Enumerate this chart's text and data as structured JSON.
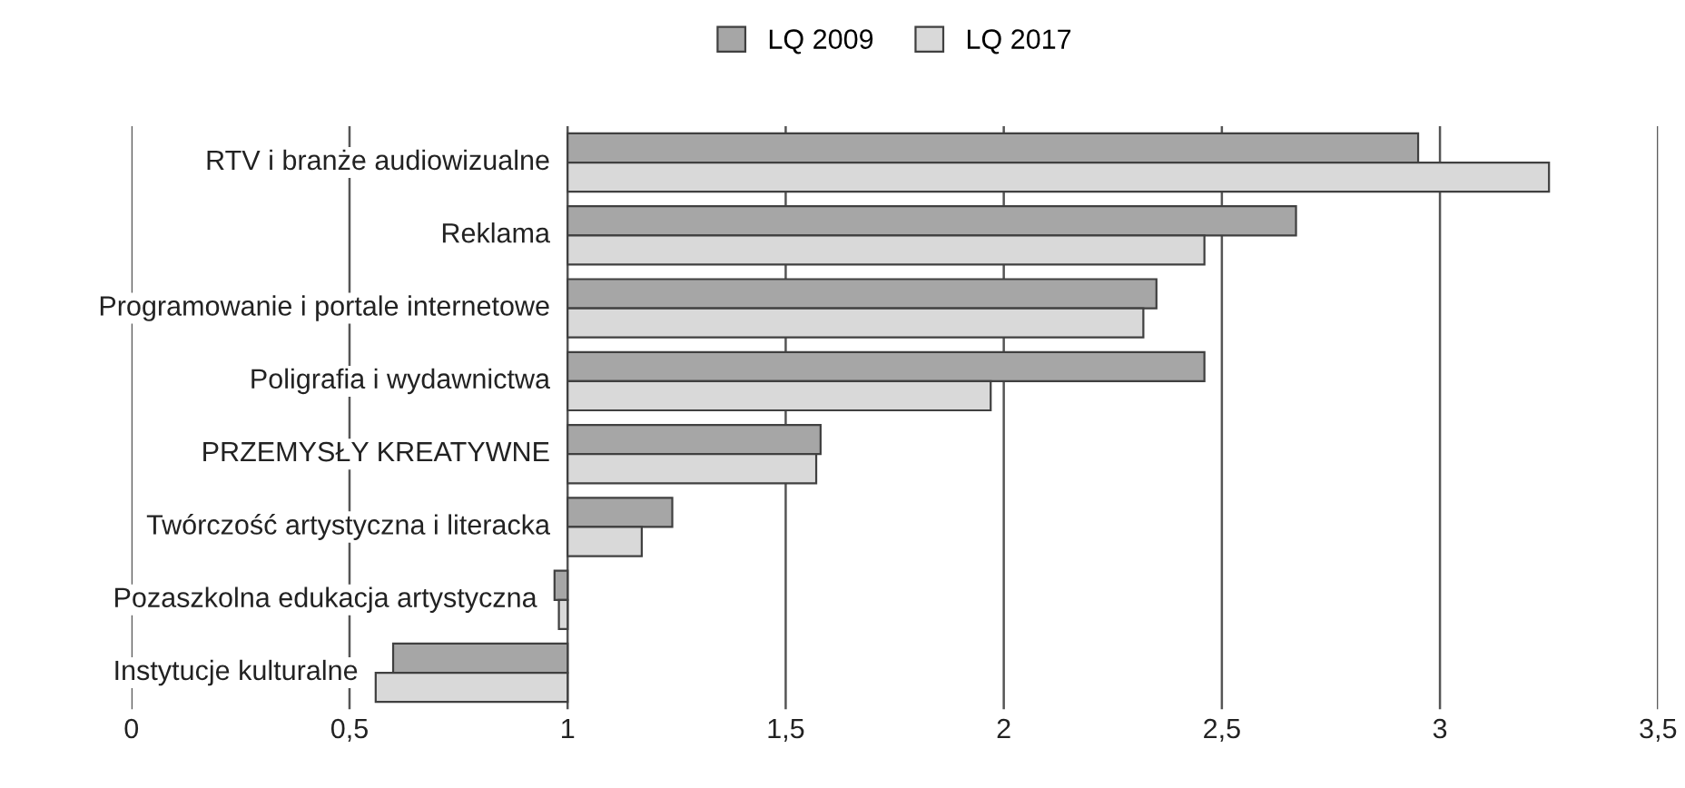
{
  "chart_data": {
    "type": "bar",
    "orientation": "horizontal",
    "categories": [
      "RTV i branże audiowizualne",
      "Reklama",
      "Programowanie i portale internetowe",
      "Poligrafia i wydawnictwa",
      "PRZEMYSŁY KREATYWNE",
      "Twórczość artystyczna i literacka",
      "Pozaszkolna edukacja artystyczna",
      "Instytucje kulturalne"
    ],
    "series": [
      {
        "name": "LQ 2009",
        "color": "#a6a6a6",
        "base": [
          1,
          1,
          1,
          1,
          1,
          1,
          1,
          1
        ],
        "values": [
          1.95,
          1.67,
          1.35,
          1.46,
          0.58,
          0.24,
          -0.03,
          -0.4
        ]
      },
      {
        "name": "LQ 2017",
        "color": "#d9d9d9",
        "base": [
          1,
          1,
          1,
          1,
          1,
          1,
          1,
          1
        ],
        "values": [
          2.25,
          1.46,
          1.32,
          0.97,
          0.57,
          0.17,
          -0.02,
          -0.44
        ]
      }
    ],
    "xlim": [
      0,
      3.5
    ],
    "xticks": [
      {
        "value": 0,
        "label": "0"
      },
      {
        "value": 0.5,
        "label": "0,5"
      },
      {
        "value": 1,
        "label": "1"
      },
      {
        "value": 1.5,
        "label": "1,5"
      },
      {
        "value": 2,
        "label": "2"
      },
      {
        "value": 2.5,
        "label": "2,5"
      },
      {
        "value": 3,
        "label": "3"
      },
      {
        "value": 3.5,
        "label": "3,5"
      }
    ],
    "grid": "x",
    "legend": "top"
  }
}
